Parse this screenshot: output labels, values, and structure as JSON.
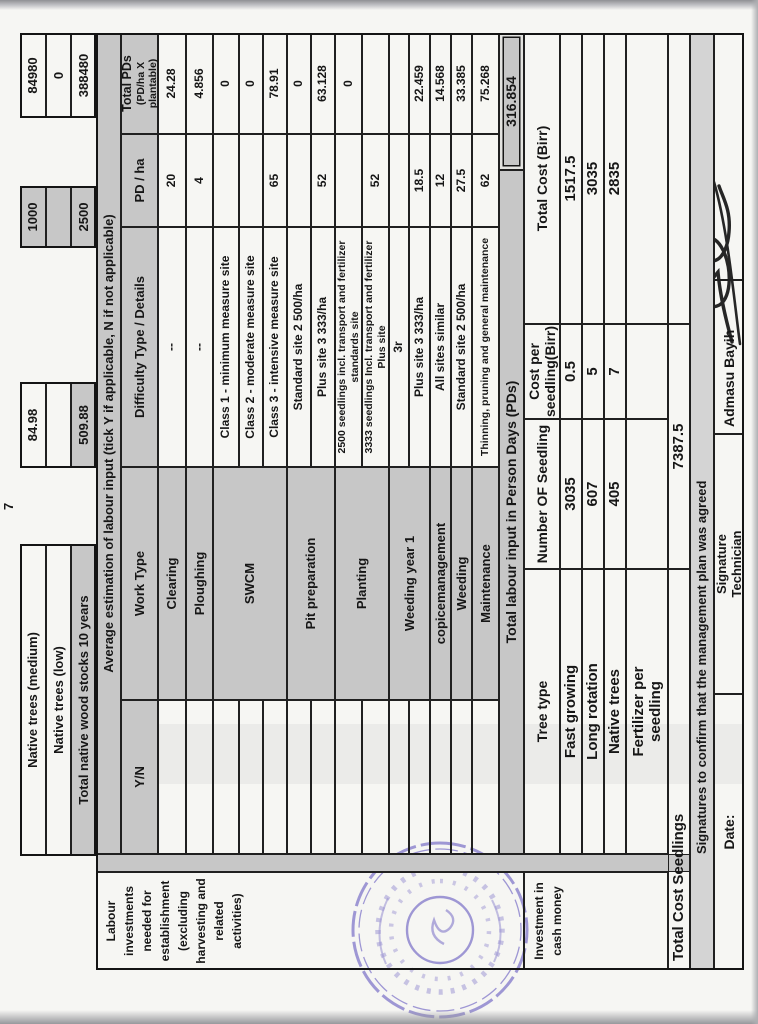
{
  "document": {
    "stray_value": "7",
    "wood_stock_table": {
      "rows": [
        {
          "label": "Native trees (medium)",
          "col1": "84.98",
          "col2": "1000",
          "col3": "84980"
        },
        {
          "label": "Native trees (low)",
          "col1": "",
          "col2": "",
          "col3": "0"
        },
        {
          "label": "Total native wood stocks 10 years",
          "col1": "509.88",
          "col2": "2500",
          "col3": "388480"
        }
      ]
    },
    "labour_table": {
      "side_label": "Labour investments needed for establishment (excluding harvesting and related activities)",
      "title": "Average estimation of labour input (tick Y if applicable, N if not applicable)",
      "headers": {
        "yn": "Y/N",
        "work": "Work Type",
        "difficulty": "Difficulty Type / Details",
        "pd": "PD / ha",
        "total_line1": "Total PDs",
        "total_line2": "(PD/ha X plantable)"
      },
      "work_groups": [
        "Clearing",
        "Ploughing",
        "SWCM",
        "Pit preparation",
        "Planting",
        "Weeding year 1",
        "copicemanagement",
        "Weeding",
        "Maintenance"
      ],
      "rows": [
        {
          "yn": "",
          "difficulty": "--",
          "pd": "20",
          "total": "24.28"
        },
        {
          "yn": "",
          "difficulty": "--",
          "pd": "4",
          "total": "4.856"
        },
        {
          "yn": "",
          "difficulty": "Class 1 - minimum measure site",
          "pd": "",
          "total": "0"
        },
        {
          "yn": "",
          "difficulty": "Class 2 - moderate measure site",
          "pd": "",
          "total": "0"
        },
        {
          "yn": "",
          "difficulty": "Class 3 - intensive measure site",
          "pd": "65",
          "total": "78.91"
        },
        {
          "yn": "",
          "difficulty": "Standard site 2 500/ha",
          "pd": "",
          "total": "0"
        },
        {
          "yn": "",
          "difficulty": "Plus site 3 333/ha",
          "pd": "52",
          "total": "63.128"
        },
        {
          "yn": "",
          "difficulty": "2500 seedlings incl. transport and fertilizer standards site",
          "pd": "",
          "total": "0"
        },
        {
          "yn": "",
          "difficulty": "3333 seedlings Incl. transport and fertilizer Plus site",
          "pd": "52",
          "total": ""
        },
        {
          "yn": "",
          "difficulty": "3r",
          "pd": "",
          "total": ""
        },
        {
          "yn": "",
          "difficulty": "Plus site 3 333/ha",
          "pd": "18.5",
          "total": "22.459"
        },
        {
          "yn": "",
          "difficulty": "All sites similar",
          "pd": "12",
          "total": "14.568"
        },
        {
          "yn": "",
          "difficulty": "Standard site 2 500/ha",
          "pd": "27.5",
          "total": "33.385"
        },
        {
          "yn": "",
          "difficulty": "Thinning, pruning and general maintenance",
          "pd": "62",
          "total": "75.268"
        }
      ],
      "total_label": "Total labour input in Person Days (PDs)",
      "total_value": "316.854"
    },
    "investment_table": {
      "side_label": "Investment in cash money",
      "headers": [
        "Tree type",
        "Number OF Seedling",
        "Cost per seedling(Birr)",
        "Total Cost (Birr)"
      ],
      "rows": [
        {
          "tree_type": "Fast growing",
          "seedlings": "3035",
          "cost_per": "0.5",
          "total_cost": "1517.5"
        },
        {
          "tree_type": "Long rotation",
          "seedlings": "607",
          "cost_per": "5",
          "total_cost": "3035"
        },
        {
          "tree_type": "Native trees",
          "seedlings": "405",
          "cost_per": "7",
          "total_cost": "2835"
        },
        {
          "tree_type": "Fertilizer per seedling",
          "seedlings": "",
          "cost_per": "",
          "total_cost": ""
        }
      ],
      "total_label": "Total Cost Seedlings",
      "total_value": "7387.5"
    },
    "signature_section": {
      "header": "Signatures to confirm that the management plan was agreed",
      "date_label": "Date:",
      "role_label": "Signature Technician",
      "signer_name": "Admasu Bayih"
    }
  }
}
